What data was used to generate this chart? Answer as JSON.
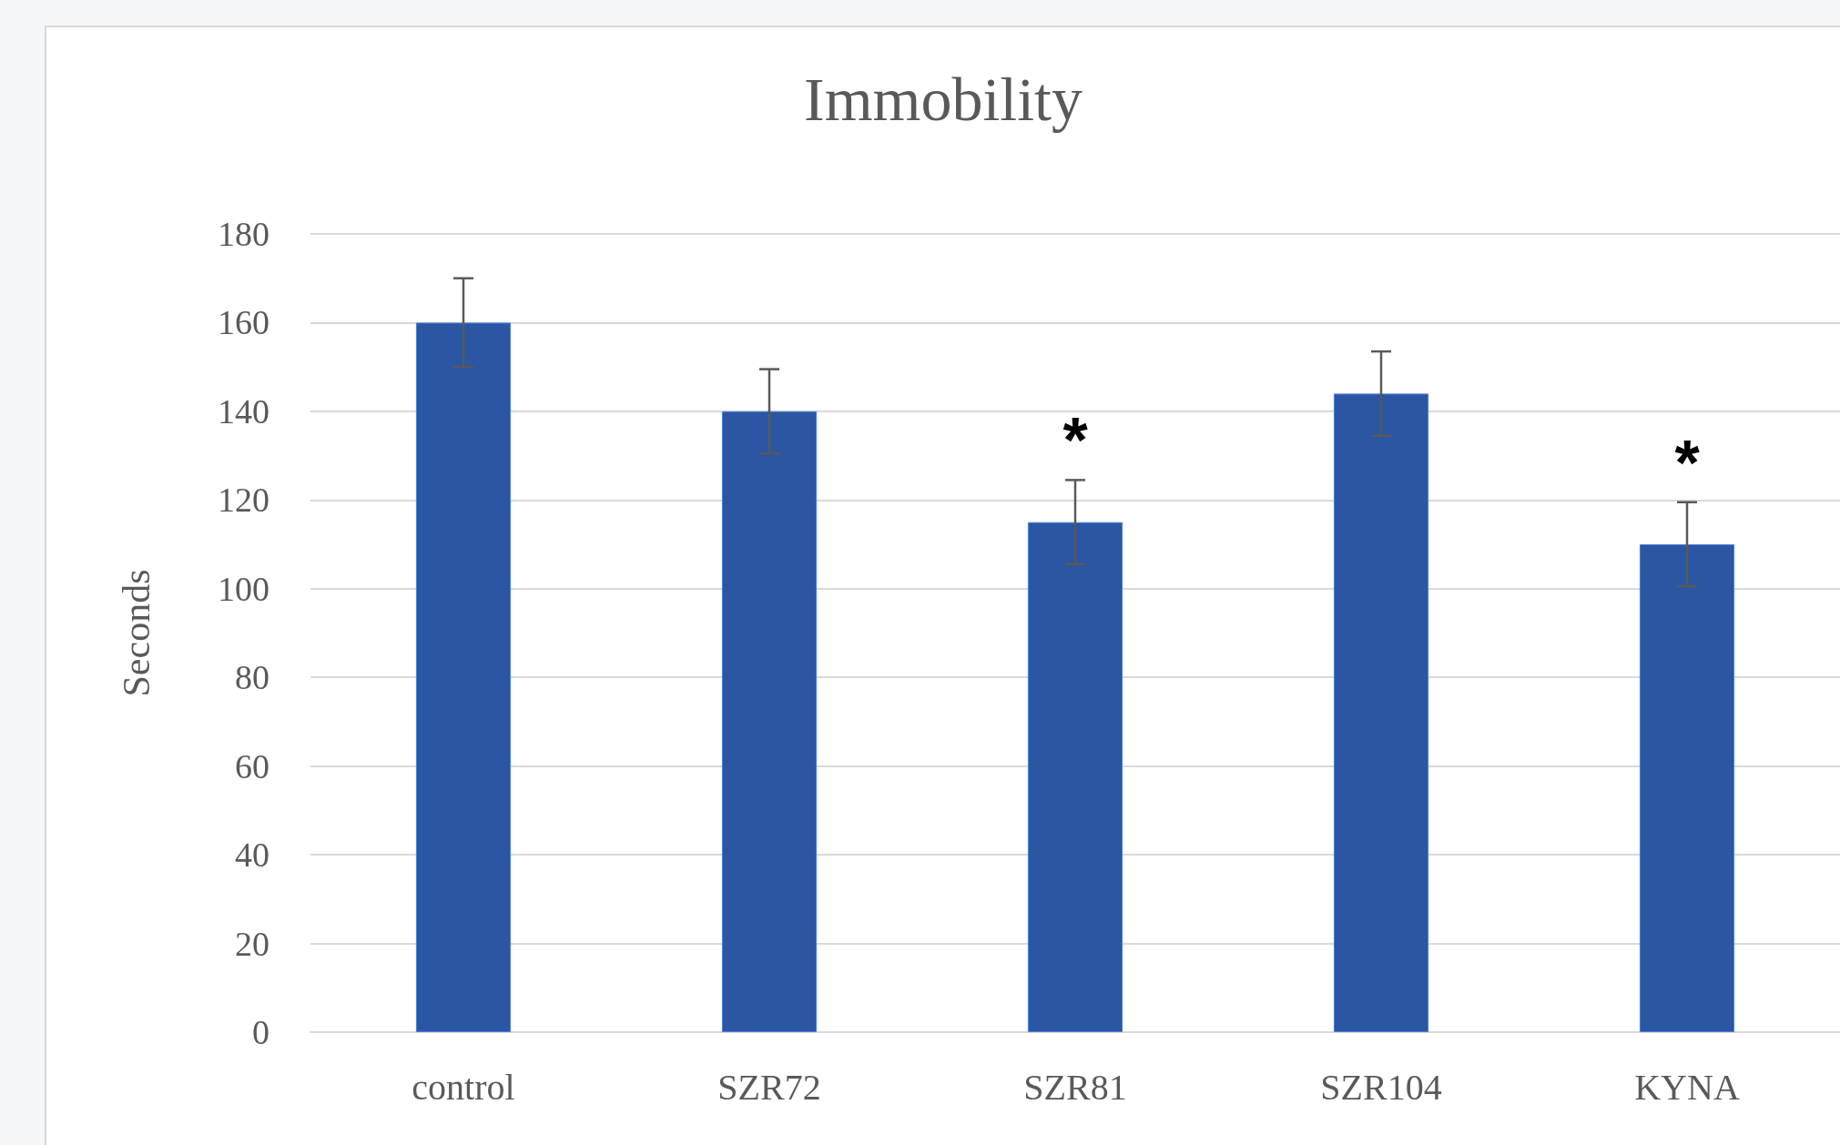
{
  "chart_data": {
    "type": "bar",
    "title": "Immobility",
    "ylabel": "Seconds",
    "categories": [
      "control",
      "SZR72",
      "SZR81",
      "SZR104",
      "KYNA"
    ],
    "values": [
      160,
      140,
      115,
      144,
      110
    ],
    "errors": [
      10,
      9.5,
      9.5,
      9.5,
      9.5
    ],
    "color": "#2a56a4",
    "ylim": [
      0,
      180
    ],
    "yticks": [
      0,
      20,
      40,
      60,
      80,
      100,
      120,
      140,
      160,
      180
    ],
    "value_labels": [
      null,
      null,
      "*",
      null,
      "*"
    ],
    "grid": "y"
  }
}
